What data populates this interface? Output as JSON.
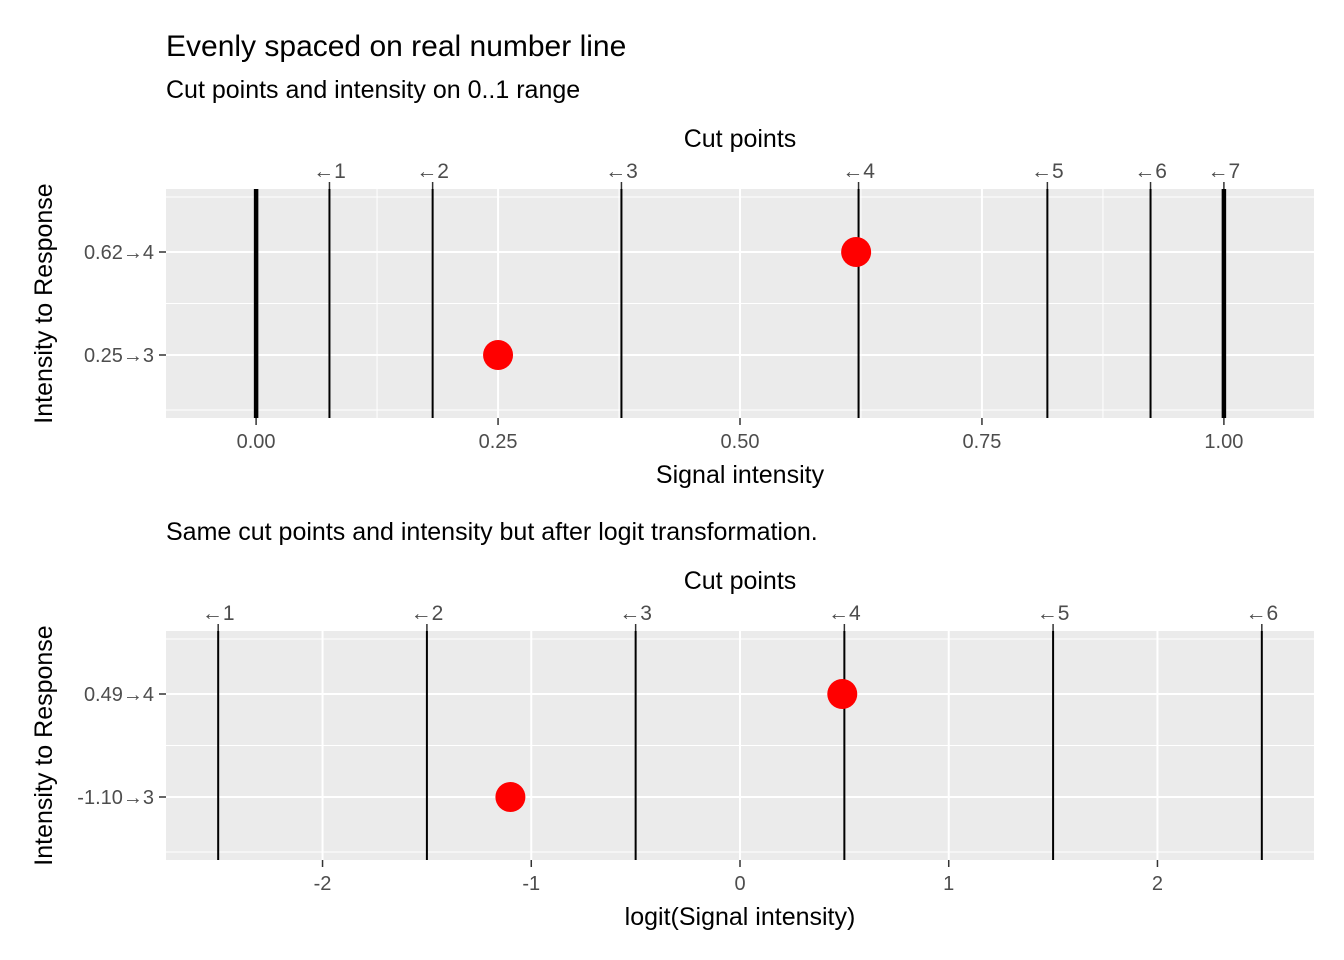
{
  "figure": {
    "title": "Evenly spaced on real number line",
    "subtitle": "Cut points and intensity on 0..1 range"
  },
  "chart_data": [
    {
      "type": "scatter",
      "subtitle": "",
      "xlabel": "Signal intensity",
      "ylabel": "Intensity to Response",
      "top_axis_title": "Cut points",
      "xlim": [
        -0.0931,
        1.0931
      ],
      "x_ticks": [
        0.0,
        0.25,
        0.5,
        0.75,
        1.0
      ],
      "x_tick_labels": [
        "0.00",
        "0.25",
        "0.50",
        "0.75",
        "1.00"
      ],
      "x_minor": [
        0.125,
        0.375,
        0.625,
        0.875
      ],
      "cut_points": [
        0.0758,
        0.1824,
        0.3775,
        0.6225,
        0.8176,
        0.9242
      ],
      "cut_labels": [
        "←1",
        "←2",
        "←3",
        "←4",
        "←5",
        "←6"
      ],
      "boundaries": [
        0.0,
        1.0
      ],
      "boundary_label": "←7",
      "points": [
        {
          "x": 0.25,
          "label": "0.25→3"
        },
        {
          "x": 0.62,
          "label": "0.62→4"
        }
      ],
      "point_color": "#ff0000",
      "line_color": "#000000",
      "panel_color": "#ebebeb",
      "grid": true
    },
    {
      "type": "scatter",
      "subtitle": "Same cut points and intensity but after logit transformation.",
      "xlabel": "logit(Signal intensity)",
      "ylabel": "Intensity to Response",
      "top_axis_title": "Cut points",
      "xlim": [
        -2.75,
        2.75
      ],
      "x_ticks": [
        -2,
        -1,
        0,
        1,
        2
      ],
      "x_tick_labels": [
        "-2",
        "-1",
        "0",
        "1",
        "2"
      ],
      "x_minor": [
        -2.5,
        -1.5,
        -0.5,
        0.5,
        1.5,
        2.5
      ],
      "cut_points": [
        -2.5,
        -1.5,
        -0.5,
        0.5,
        1.5,
        2.5
      ],
      "cut_labels": [
        "←1",
        "←2",
        "←3",
        "←4",
        "←5",
        "←6"
      ],
      "boundaries": [],
      "boundary_label": "",
      "points": [
        {
          "x": -1.1,
          "label": "-1.10→3"
        },
        {
          "x": 0.49,
          "label": "0.49→4"
        }
      ],
      "point_color": "#ff0000",
      "line_color": "#000000",
      "panel_color": "#ebebeb",
      "grid": true
    }
  ]
}
